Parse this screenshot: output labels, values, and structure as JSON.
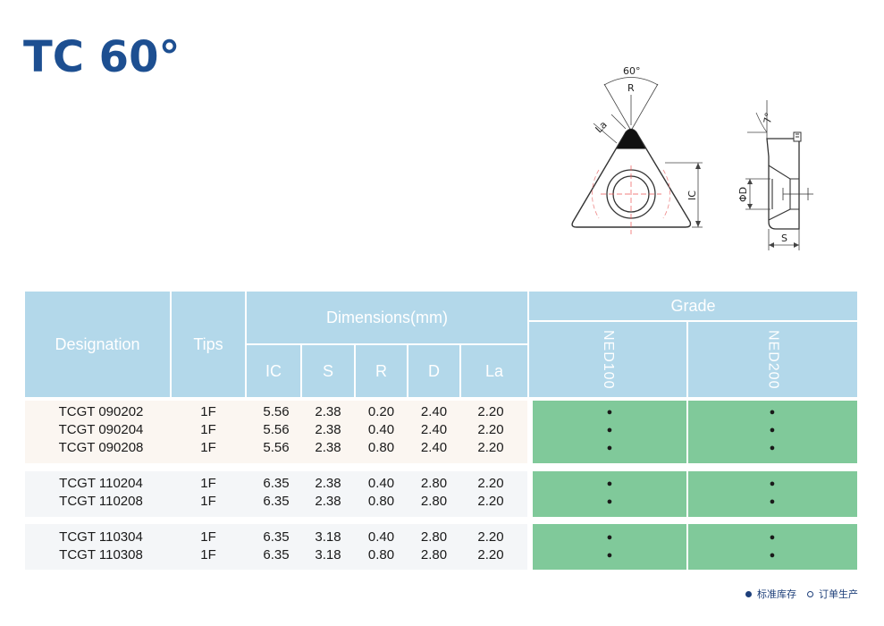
{
  "title": "TC 60°",
  "drawing": {
    "angle_label": "60°",
    "r_label": "R",
    "la_label": "La",
    "ic_label": "IC",
    "clearance_label": "7°",
    "d_label": "ΦD",
    "s_label": "S"
  },
  "table": {
    "headers": {
      "designation": "Designation",
      "tips": "Tips",
      "dimensions": "Dimensions(mm)",
      "grade": "Grade",
      "dims": [
        "IC",
        "S",
        "R",
        "D",
        "La"
      ],
      "grades": [
        "NED100",
        "NED200"
      ]
    },
    "groups": [
      {
        "rows": [
          {
            "designation": "TCGT 090202",
            "tips": "1F",
            "ic": "5.56",
            "s": "2.38",
            "r": "0.20",
            "d": "2.40",
            "la": "2.20",
            "g1": "●",
            "g2": "●"
          },
          {
            "designation": "TCGT 090204",
            "tips": "1F",
            "ic": "5.56",
            "s": "2.38",
            "r": "0.40",
            "d": "2.40",
            "la": "2.20",
            "g1": "●",
            "g2": "●"
          },
          {
            "designation": "TCGT 090208",
            "tips": "1F",
            "ic": "5.56",
            "s": "2.38",
            "r": "0.80",
            "d": "2.40",
            "la": "2.20",
            "g1": "●",
            "g2": "●"
          }
        ]
      },
      {
        "rows": [
          {
            "designation": "TCGT 110204",
            "tips": "1F",
            "ic": "6.35",
            "s": "2.38",
            "r": "0.40",
            "d": "2.80",
            "la": "2.20",
            "g1": "●",
            "g2": "●"
          },
          {
            "designation": "TCGT 110208",
            "tips": "1F",
            "ic": "6.35",
            "s": "2.38",
            "r": "0.80",
            "d": "2.80",
            "la": "2.20",
            "g1": "●",
            "g2": "●"
          }
        ]
      },
      {
        "rows": [
          {
            "designation": "TCGT 110304",
            "tips": "1F",
            "ic": "6.35",
            "s": "3.18",
            "r": "0.40",
            "d": "2.80",
            "la": "2.20",
            "g1": "●",
            "g2": "●"
          },
          {
            "designation": "TCGT 110308",
            "tips": "1F",
            "ic": "6.35",
            "s": "3.18",
            "r": "0.80",
            "d": "2.80",
            "la": "2.20",
            "g1": "●",
            "g2": "●"
          }
        ]
      }
    ]
  },
  "legend": {
    "stock": "标准库存",
    "order": "订单生产"
  },
  "colors": {
    "title": "#1d4f91",
    "header_bg": "#b3d8ea",
    "grade_bg": "#80c99a",
    "group1_bg": "#fbf6f1",
    "group_bg": "#f4f6f8"
  }
}
